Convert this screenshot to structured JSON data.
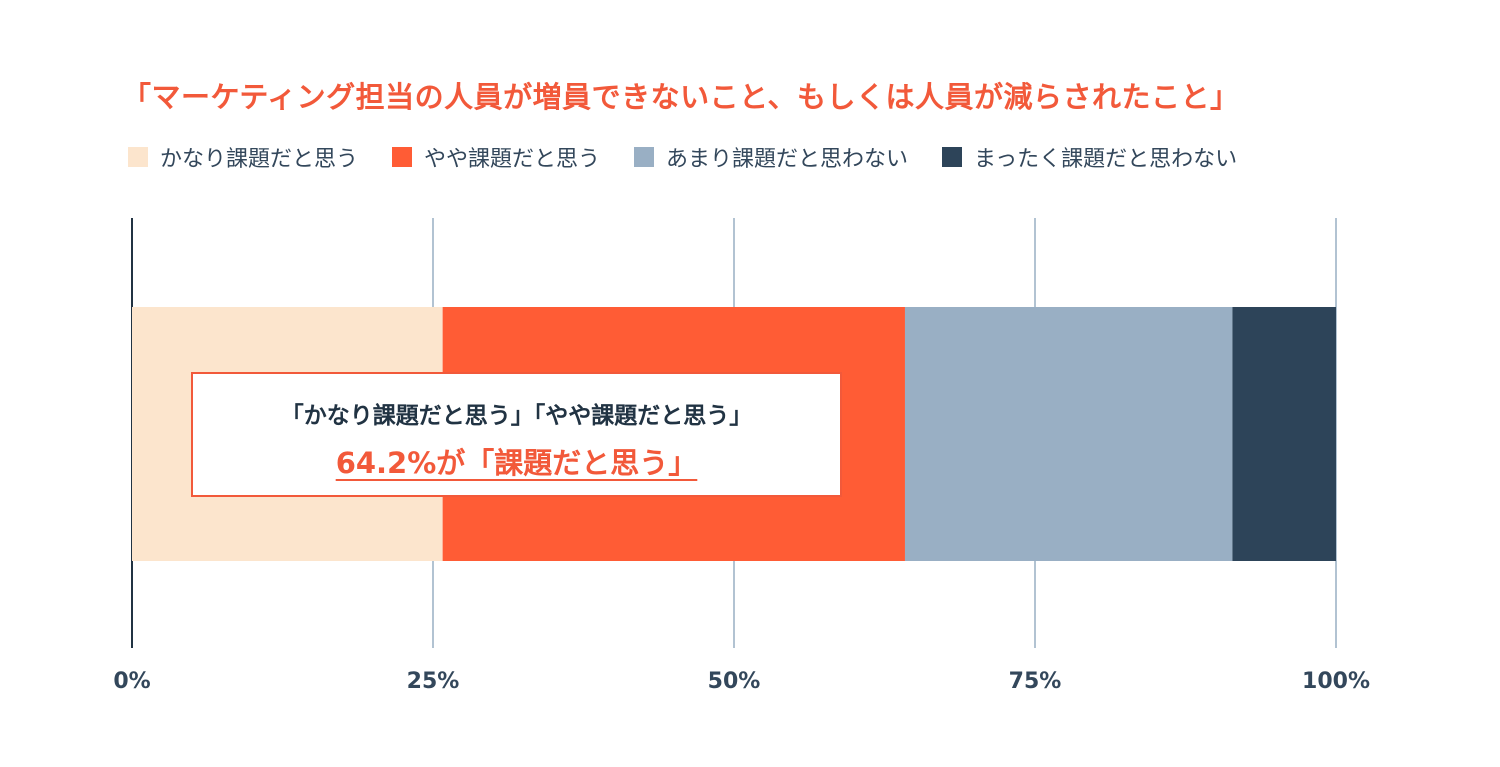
{
  "chart_data": {
    "type": "bar",
    "orientation": "horizontal-stacked",
    "title": "「マーケティング担当の人員が増員できないこと、もしくは人員が減らされたこと」",
    "series": [
      {
        "name": "かなり課題だと思う",
        "value": 25.8,
        "color": "#fce5cd"
      },
      {
        "name": "やや課題だと思う",
        "value": 38.4,
        "color": "#ff5c35"
      },
      {
        "name": "あまり課題だと思わない",
        "value": 27.2,
        "color": "#99afc4"
      },
      {
        "name": "まったく課題だと思わない",
        "value": 8.6,
        "color": "#2d4459"
      }
    ],
    "xlim": [
      0,
      100
    ],
    "ticks": [
      "0%",
      "25%",
      "50%",
      "75%",
      "100%"
    ],
    "tick_values": [
      0,
      25,
      50,
      75,
      100
    ],
    "grid": true,
    "legend_position": "top-left",
    "annotation": {
      "line1": "「かなり課題だと思う」「やや課題だと思う」",
      "line2": "64.2%が「課題だと思う」"
    }
  }
}
